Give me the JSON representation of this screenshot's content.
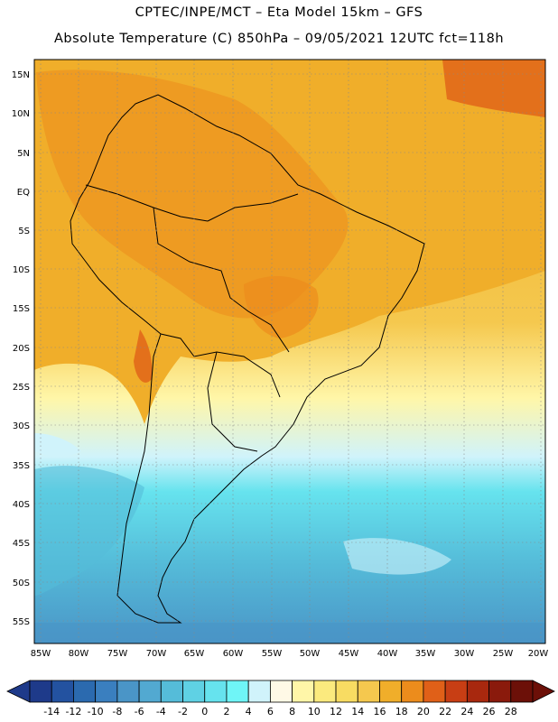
{
  "header": {
    "line1": "CPTEC/INPE/MCT –  Eta Model 15km – GFS",
    "line2": "Absolute Temperature (C) 850hPa – 09/05/2021 12UTC fct=118h"
  },
  "map": {
    "lat_labels": [
      "15N",
      "10N",
      "5N",
      "EQ",
      "5S",
      "10S",
      "15S",
      "20S",
      "25S",
      "30S",
      "35S",
      "40S",
      "45S",
      "50S",
      "55S"
    ],
    "lon_labels": [
      "85W",
      "80W",
      "75W",
      "70W",
      "65W",
      "60W",
      "55W",
      "50W",
      "45W",
      "40W",
      "35W",
      "30W",
      "25W",
      "20W"
    ]
  },
  "colorbar": {
    "labels": [
      "-14",
      "-12",
      "-10",
      "-8",
      "-6",
      "-4",
      "-2",
      "0",
      "2",
      "4",
      "6",
      "8",
      "10",
      "12",
      "14",
      "16",
      "18",
      "20",
      "22",
      "24",
      "26",
      "28"
    ],
    "colors": [
      "#1e3a8a",
      "#2352a0",
      "#2b6aaf",
      "#3a7fbf",
      "#4a95c7",
      "#52a9d1",
      "#55bcd9",
      "#5fd1e4",
      "#66e3ee",
      "#6ff5f7",
      "#d0f3fb",
      "#fff9e6",
      "#fff6a8",
      "#fbea7e",
      "#f8dc62",
      "#f5c84e",
      "#f0ae2a",
      "#ec8c1c",
      "#e06018",
      "#c83e14",
      "#a8280e",
      "#8a1a0c",
      "#6c1008"
    ]
  }
}
